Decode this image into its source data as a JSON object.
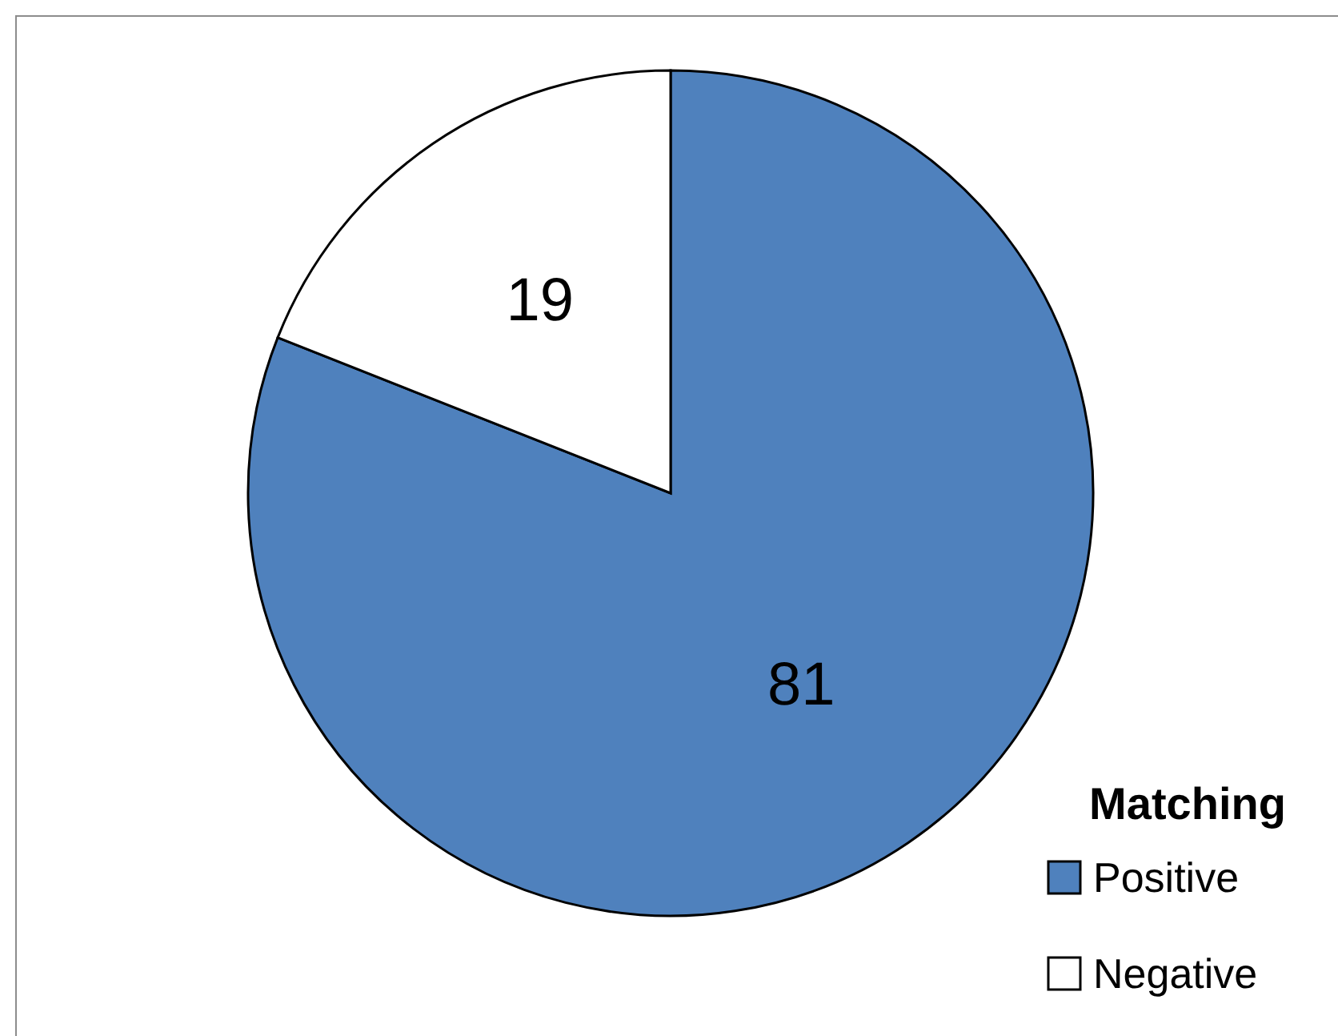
{
  "chart_data": {
    "type": "pie",
    "categories": [
      "Positive",
      "Negative"
    ],
    "values": [
      81,
      19
    ],
    "colors": [
      "#4f81bd",
      "#ffffff"
    ],
    "data_labels": true,
    "legend": "bottom right",
    "legend_title": "Matching"
  }
}
